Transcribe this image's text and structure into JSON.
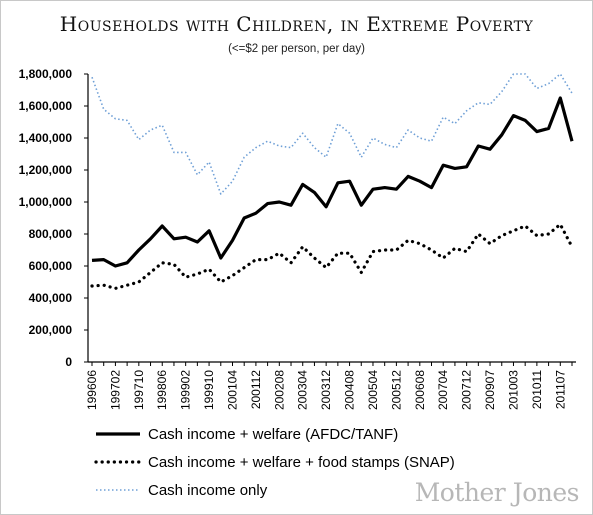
{
  "title": "Households with Children, in Extreme Poverty",
  "subtitle": "(<=$2 per person, per day)",
  "credit": "Mother Jones",
  "chart_data": {
    "type": "line",
    "title": "Households with Children, in Extreme Poverty",
    "subtitle": "(<=$2 per person, per day)",
    "xlabel": "",
    "ylabel": "",
    "ylim": [
      0,
      1800000
    ],
    "yticks": [
      "1,800,000",
      "1,600,000",
      "1,400,000",
      "1,200,000",
      "1,000,000",
      "800,000",
      "600,000",
      "400,000",
      "200,000",
      "0"
    ],
    "ytick_values": [
      1800000,
      1600000,
      1400000,
      1200000,
      1000000,
      800000,
      600000,
      400000,
      200000,
      0
    ],
    "xtick_labels": [
      "199606",
      "199702",
      "199710",
      "199806",
      "199902",
      "199910",
      "200104",
      "200112",
      "200208",
      "200304",
      "200312",
      "200408",
      "200504",
      "200512",
      "200608",
      "200704",
      "200712",
      "200907",
      "201003",
      "201011",
      "201107"
    ],
    "grid": false,
    "legend_position": "bottom",
    "series": [
      {
        "name": "Cash income + welfare (AFDC/TANF)",
        "style": "solid",
        "color": "#000000",
        "values": [
          635000,
          640000,
          600000,
          620000,
          700000,
          770000,
          850000,
          770000,
          780000,
          750000,
          820000,
          650000,
          760000,
          900000,
          930000,
          990000,
          1000000,
          980000,
          1110000,
          1060000,
          970000,
          1120000,
          1130000,
          980000,
          1080000,
          1090000,
          1080000,
          1160000,
          1130000,
          1090000,
          1230000,
          1210000,
          1220000,
          1350000,
          1330000,
          1420000,
          1540000,
          1510000,
          1440000,
          1460000,
          1650000,
          1380000
        ]
      },
      {
        "name": "Cash income + welfare + food stamps (SNAP)",
        "style": "dotted",
        "color": "#000000",
        "values": [
          475000,
          480000,
          460000,
          480000,
          500000,
          560000,
          620000,
          610000,
          530000,
          550000,
          580000,
          500000,
          540000,
          590000,
          640000,
          640000,
          680000,
          620000,
          720000,
          650000,
          590000,
          680000,
          680000,
          560000,
          690000,
          700000,
          700000,
          760000,
          740000,
          700000,
          650000,
          710000,
          690000,
          800000,
          740000,
          790000,
          820000,
          850000,
          790000,
          800000,
          860000,
          720000
        ]
      },
      {
        "name": "Cash income only",
        "style": "dotted-light",
        "color": "#6e9fd6",
        "values": [
          1780000,
          1580000,
          1520000,
          1510000,
          1390000,
          1450000,
          1480000,
          1310000,
          1310000,
          1170000,
          1250000,
          1050000,
          1130000,
          1280000,
          1340000,
          1380000,
          1350000,
          1340000,
          1430000,
          1340000,
          1280000,
          1490000,
          1430000,
          1280000,
          1400000,
          1360000,
          1340000,
          1450000,
          1400000,
          1380000,
          1530000,
          1490000,
          1570000,
          1620000,
          1610000,
          1690000,
          1810000,
          1810000,
          1710000,
          1740000,
          1830000,
          1680000
        ]
      }
    ]
  }
}
